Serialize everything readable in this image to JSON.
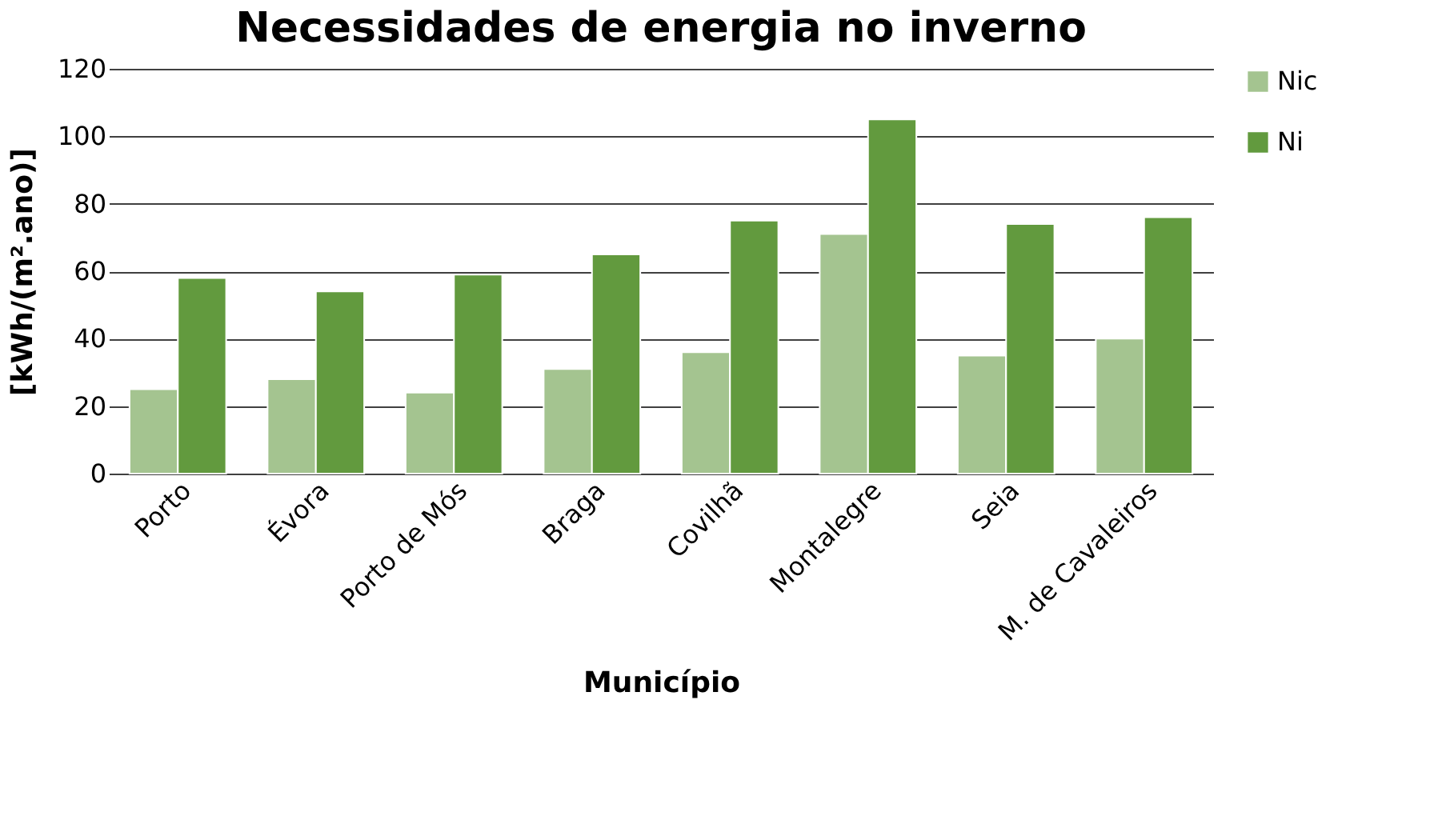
{
  "chart_data": {
    "type": "bar",
    "title": "Necessidades de energia no inverno",
    "xlabel": "Município",
    "ylabel": "[kWh/(m².ano)]",
    "categories": [
      "Porto",
      "Évora",
      "Porto de Mós",
      "Braga",
      "Covilhã",
      "Montalegre",
      "Seia",
      "M. de Cavaleiros"
    ],
    "series": [
      {
        "name": "Nic",
        "color": "#a4c490",
        "values": [
          25,
          28,
          24,
          31,
          36,
          71,
          35,
          40
        ]
      },
      {
        "name": "Ni",
        "color": "#629a3e",
        "values": [
          58,
          54,
          59,
          65,
          75,
          105,
          74,
          76
        ]
      }
    ],
    "ylim": [
      0,
      120
    ],
    "yticks": [
      0,
      20,
      40,
      60,
      80,
      100,
      120
    ],
    "grid": "y",
    "legend": "right"
  }
}
